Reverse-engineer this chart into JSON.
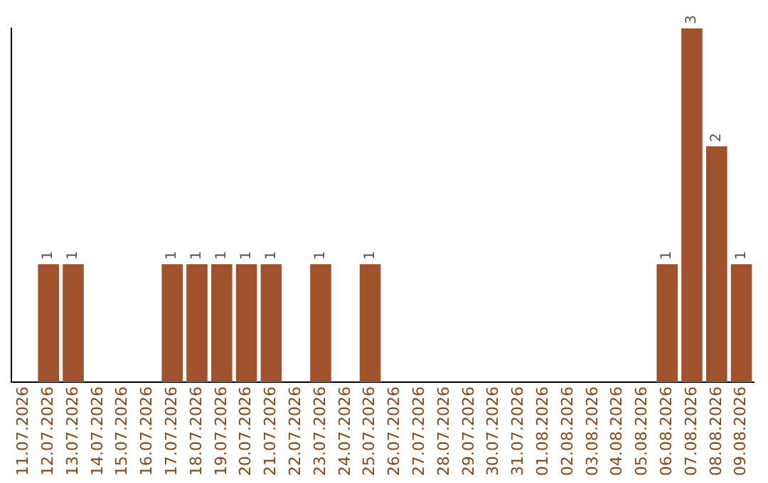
{
  "chart_data": {
    "type": "bar",
    "categories": [
      "11.07.2026",
      "12.07.2026",
      "13.07.2026",
      "14.07.2026",
      "15.07.2026",
      "16.07.2026",
      "17.07.2026",
      "18.07.2026",
      "19.07.2026",
      "20.07.2026",
      "21.07.2026",
      "22.07.2026",
      "23.07.2026",
      "24.07.2026",
      "25.07.2026",
      "26.07.2026",
      "27.07.2026",
      "28.07.2026",
      "29.07.2026",
      "30.07.2026",
      "31.07.2026",
      "01.08.2026",
      "02.08.2026",
      "03.08.2026",
      "04.08.2026",
      "05.08.2026",
      "06.08.2026",
      "07.08.2026",
      "08.08.2026",
      "09.08.2026"
    ],
    "values": [
      0,
      1,
      1,
      0,
      0,
      0,
      1,
      1,
      1,
      1,
      1,
      0,
      1,
      0,
      1,
      0,
      0,
      0,
      0,
      0,
      0,
      0,
      0,
      0,
      0,
      0,
      1,
      3,
      2,
      1
    ],
    "value_labels": [
      null,
      "1",
      "1",
      null,
      null,
      null,
      "1",
      "1",
      "1",
      "1",
      "1",
      null,
      "1",
      null,
      "1",
      null,
      null,
      null,
      null,
      null,
      null,
      null,
      null,
      null,
      null,
      null,
      "1",
      "3",
      "2",
      "1"
    ],
    "color": "#a0522d",
    "tick_labels": "x",
    "grid": false,
    "legend": false
  }
}
